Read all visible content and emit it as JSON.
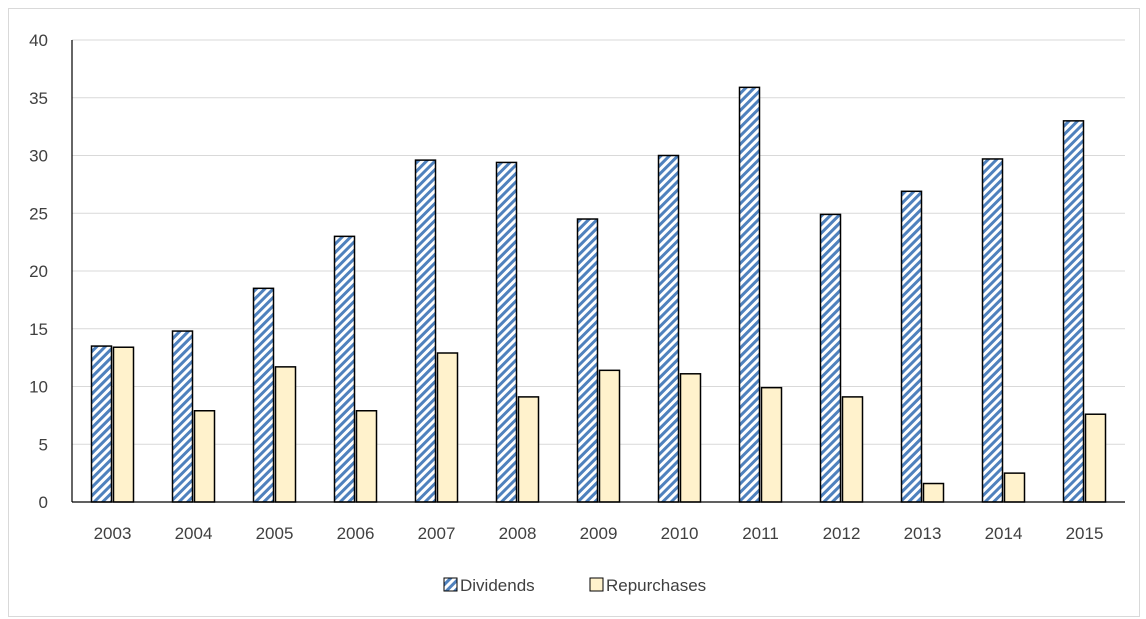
{
  "chart_data": {
    "type": "bar",
    "categories": [
      "2003",
      "2004",
      "2005",
      "2006",
      "2007",
      "2008",
      "2009",
      "2010",
      "2011",
      "2012",
      "2013",
      "2014",
      "2015"
    ],
    "series": [
      {
        "name": "Dividends",
        "values": [
          13.5,
          14.8,
          18.5,
          23.0,
          29.6,
          29.4,
          24.5,
          30.0,
          35.9,
          24.9,
          26.9,
          29.7,
          33.0
        ],
        "color": "#4f81bd",
        "pattern": "diagonal-stripes"
      },
      {
        "name": "Repurchases",
        "values": [
          13.4,
          7.9,
          11.7,
          7.9,
          12.9,
          9.1,
          11.4,
          11.1,
          9.9,
          9.1,
          1.6,
          2.5,
          7.6
        ],
        "color": "#fff2cc",
        "pattern": "solid"
      }
    ],
    "title": "",
    "xlabel": "",
    "ylabel": "",
    "ylim": [
      0,
      40
    ],
    "yticks": [
      "0",
      "5",
      "10",
      "15",
      "20",
      "25",
      "30",
      "35",
      "40"
    ],
    "grid": true,
    "legend": "bottom-center"
  }
}
